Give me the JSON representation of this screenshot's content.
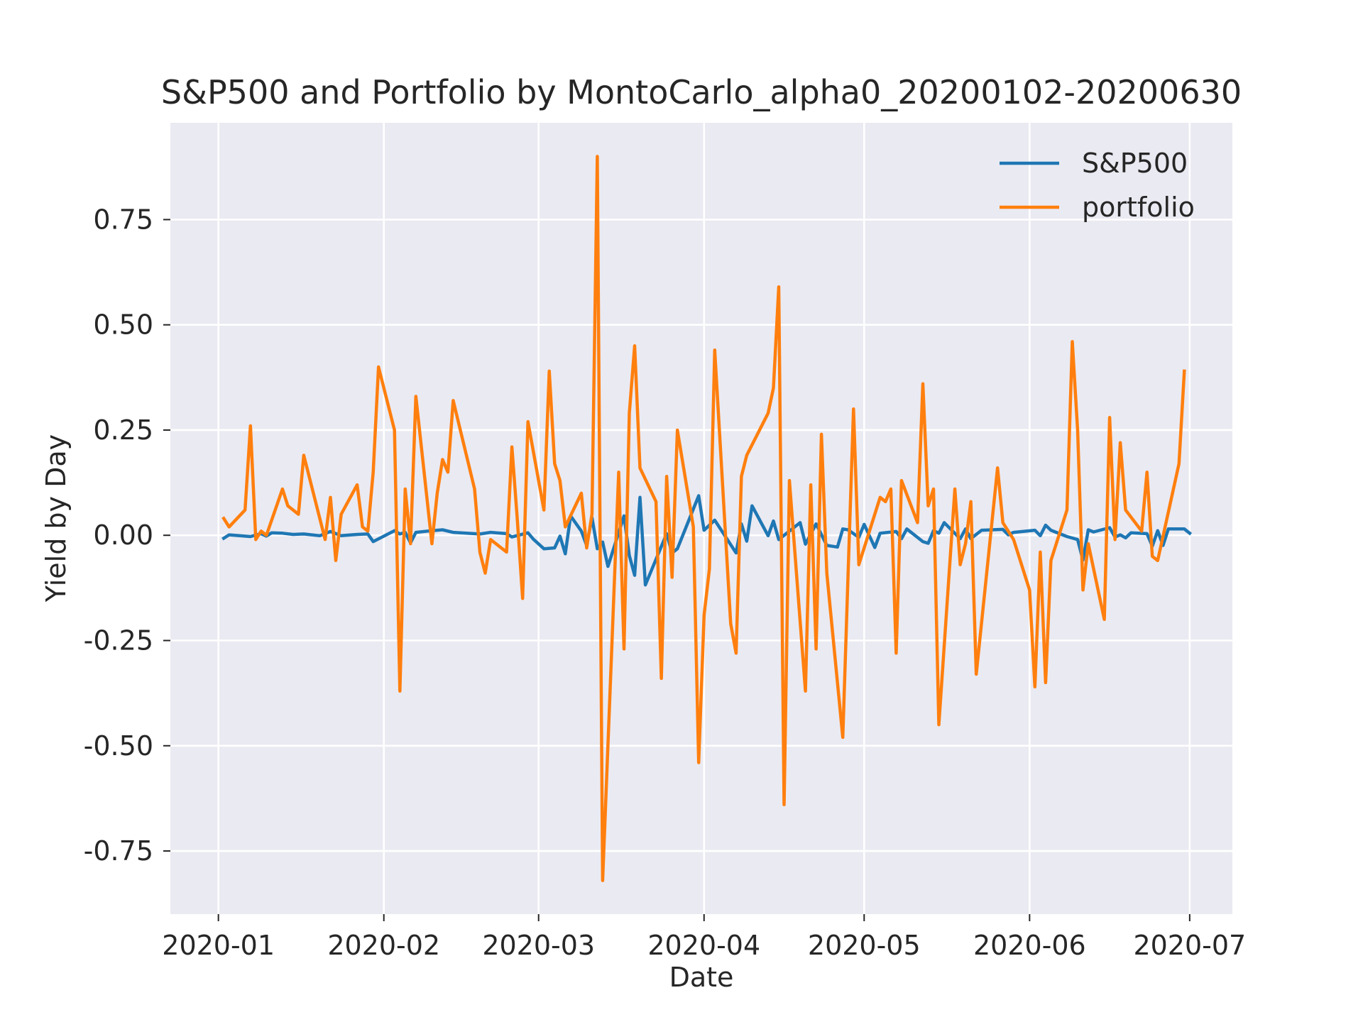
{
  "chart_data": {
    "type": "line",
    "title": "S&P500 and Portfolio by MontoCarlo_alpha0_20200102-20200630",
    "xlabel": "Date",
    "ylabel": "Yield by Day",
    "xlim": [
      "2019-12-23",
      "2020-07-09"
    ],
    "ylim": [
      -0.9,
      0.98
    ],
    "xticks": [
      {
        "date": "2020-01-01",
        "label": "2020-01"
      },
      {
        "date": "2020-02-01",
        "label": "2020-02"
      },
      {
        "date": "2020-03-01",
        "label": "2020-03"
      },
      {
        "date": "2020-04-01",
        "label": "2020-04"
      },
      {
        "date": "2020-05-01",
        "label": "2020-05"
      },
      {
        "date": "2020-06-01",
        "label": "2020-06"
      },
      {
        "date": "2020-07-01",
        "label": "2020-07"
      }
    ],
    "yticks": [
      {
        "value": -0.75,
        "label": "-0.75"
      },
      {
        "value": -0.5,
        "label": "-0.50"
      },
      {
        "value": -0.25,
        "label": "-0.25"
      },
      {
        "value": 0.0,
        "label": "0.00"
      },
      {
        "value": 0.25,
        "label": "0.25"
      },
      {
        "value": 0.5,
        "label": "0.50"
      },
      {
        "value": 0.75,
        "label": "0.75"
      }
    ],
    "grid": true,
    "legend_position": "top-right",
    "colors": {
      "background": "#eaeaf2",
      "grid": "#ffffff",
      "S&P500": "#1f77b4",
      "portfolio": "#ff7f0e"
    },
    "series": [
      {
        "name": "S&P500",
        "color": "#1f77b4",
        "points": [
          [
            "2020-01-02",
            -0.007
          ],
          [
            "2020-01-03",
            0.001
          ],
          [
            "2020-01-07",
            -0.003
          ],
          [
            "2020-01-09",
            0.004
          ],
          [
            "2020-01-10",
            -0.002
          ],
          [
            "2020-01-11",
            0.006
          ],
          [
            "2020-01-13",
            0.005
          ],
          [
            "2020-01-15",
            0.002
          ],
          [
            "2020-01-17",
            0.003
          ],
          [
            "2020-01-20",
            -0.001
          ],
          [
            "2020-01-22",
            0.009
          ],
          [
            "2020-01-24",
            -0.001
          ],
          [
            "2020-01-27",
            0.002
          ],
          [
            "2020-01-29",
            0.003
          ],
          [
            "2020-01-30",
            -0.015
          ],
          [
            "2020-02-03",
            0.011
          ],
          [
            "2020-02-04",
            0.003
          ],
          [
            "2020-02-05",
            0.007
          ],
          [
            "2020-02-06",
            -0.018
          ],
          [
            "2020-02-07",
            0.007
          ],
          [
            "2020-02-10",
            0.011
          ],
          [
            "2020-02-12",
            0.013
          ],
          [
            "2020-02-14",
            0.007
          ],
          [
            "2020-02-19",
            0.003
          ],
          [
            "2020-02-21",
            0.007
          ],
          [
            "2020-02-24",
            0.004
          ],
          [
            "2020-02-25",
            -0.004
          ],
          [
            "2020-02-28",
            0.006
          ],
          [
            "2020-02-29",
            -0.009
          ],
          [
            "2020-03-02",
            -0.032
          ],
          [
            "2020-03-04",
            -0.03
          ],
          [
            "2020-03-05",
            -0.002
          ],
          [
            "2020-03-06",
            -0.044
          ],
          [
            "2020-03-07",
            0.046
          ],
          [
            "2020-03-09",
            0.01
          ],
          [
            "2020-03-10",
            -0.024
          ],
          [
            "2020-03-11",
            0.042
          ],
          [
            "2020-03-12",
            -0.032
          ],
          [
            "2020-03-13",
            -0.016
          ],
          [
            "2020-03-14",
            -0.074
          ],
          [
            "2020-03-17",
            0.046
          ],
          [
            "2020-03-18",
            -0.048
          ],
          [
            "2020-03-19",
            -0.095
          ],
          [
            "2020-03-20",
            0.09
          ],
          [
            "2020-03-21",
            -0.118
          ],
          [
            "2020-03-25",
            0.004
          ],
          [
            "2020-03-26",
            -0.042
          ],
          [
            "2020-03-27",
            -0.032
          ],
          [
            "2020-03-31",
            0.094
          ],
          [
            "2020-04-01",
            0.012
          ],
          [
            "2020-04-03",
            0.036
          ],
          [
            "2020-04-07",
            -0.042
          ],
          [
            "2020-04-08",
            0.027
          ],
          [
            "2020-04-09",
            -0.014
          ],
          [
            "2020-04-10",
            0.07
          ],
          [
            "2020-04-13",
            -0.001
          ],
          [
            "2020-04-14",
            0.034
          ],
          [
            "2020-04-15",
            -0.01
          ],
          [
            "2020-04-19",
            0.03
          ],
          [
            "2020-04-20",
            -0.021
          ],
          [
            "2020-04-22",
            0.027
          ],
          [
            "2020-04-24",
            -0.024
          ],
          [
            "2020-04-26",
            -0.028
          ],
          [
            "2020-04-27",
            0.015
          ],
          [
            "2020-04-28",
            0.013
          ],
          [
            "2020-04-30",
            -0.005
          ],
          [
            "2020-05-01",
            0.026
          ],
          [
            "2020-05-03",
            -0.029
          ],
          [
            "2020-05-04",
            0.005
          ],
          [
            "2020-05-07",
            0.009
          ],
          [
            "2020-05-08",
            -0.008
          ],
          [
            "2020-05-09",
            0.015
          ],
          [
            "2020-05-12",
            -0.015
          ],
          [
            "2020-05-13",
            -0.019
          ],
          [
            "2020-05-14",
            0.011
          ],
          [
            "2020-05-15",
            0.005
          ],
          [
            "2020-05-16",
            0.03
          ],
          [
            "2020-05-19",
            -0.008
          ],
          [
            "2020-05-20",
            0.015
          ],
          [
            "2020-05-21",
            -0.008
          ],
          [
            "2020-05-22",
            0.002
          ],
          [
            "2020-05-23",
            0.012
          ],
          [
            "2020-05-27",
            0.014
          ],
          [
            "2020-05-28",
            0.001
          ],
          [
            "2020-05-29",
            0.007
          ],
          [
            "2020-06-02",
            0.012
          ],
          [
            "2020-06-03",
            -0.001
          ],
          [
            "2020-06-04",
            0.024
          ],
          [
            "2020-06-05",
            0.012
          ],
          [
            "2020-06-08",
            -0.003
          ],
          [
            "2020-06-10",
            -0.01
          ],
          [
            "2020-06-11",
            -0.059
          ],
          [
            "2020-06-12",
            0.013
          ],
          [
            "2020-06-13",
            0.008
          ],
          [
            "2020-06-16",
            0.018
          ],
          [
            "2020-06-17",
            -0.004
          ],
          [
            "2020-06-18",
            0.001
          ],
          [
            "2020-06-19",
            -0.006
          ],
          [
            "2020-06-20",
            0.006
          ],
          [
            "2020-06-23",
            0.004
          ],
          [
            "2020-06-24",
            -0.026
          ],
          [
            "2020-06-25",
            0.011
          ],
          [
            "2020-06-26",
            -0.024
          ],
          [
            "2020-06-27",
            0.015
          ],
          [
            "2020-06-30",
            0.015
          ],
          [
            "2020-07-01",
            0.005
          ]
        ]
      },
      {
        "name": "portfolio",
        "color": "#ff7f0e",
        "points": [
          [
            "2020-01-02",
            0.04
          ],
          [
            "2020-01-03",
            0.02
          ],
          [
            "2020-01-06",
            0.06
          ],
          [
            "2020-01-07",
            0.26
          ],
          [
            "2020-01-08",
            -0.01
          ],
          [
            "2020-01-09",
            0.01
          ],
          [
            "2020-01-10",
            0.0
          ],
          [
            "2020-01-13",
            0.11
          ],
          [
            "2020-01-14",
            0.07
          ],
          [
            "2020-01-15",
            0.06
          ],
          [
            "2020-01-16",
            0.05
          ],
          [
            "2020-01-17",
            0.19
          ],
          [
            "2020-01-21",
            -0.01
          ],
          [
            "2020-01-22",
            0.09
          ],
          [
            "2020-01-23",
            -0.06
          ],
          [
            "2020-01-24",
            0.05
          ],
          [
            "2020-01-27",
            0.12
          ],
          [
            "2020-01-28",
            0.02
          ],
          [
            "2020-01-29",
            0.01
          ],
          [
            "2020-01-30",
            0.15
          ],
          [
            "2020-01-31",
            0.4
          ],
          [
            "2020-02-03",
            0.25
          ],
          [
            "2020-02-04",
            -0.37
          ],
          [
            "2020-02-05",
            0.11
          ],
          [
            "2020-02-06",
            -0.02
          ],
          [
            "2020-02-07",
            0.33
          ],
          [
            "2020-02-10",
            -0.02
          ],
          [
            "2020-02-11",
            0.1
          ],
          [
            "2020-02-12",
            0.18
          ],
          [
            "2020-02-13",
            0.15
          ],
          [
            "2020-02-14",
            0.32
          ],
          [
            "2020-02-18",
            0.11
          ],
          [
            "2020-02-19",
            -0.04
          ],
          [
            "2020-02-20",
            -0.09
          ],
          [
            "2020-02-21",
            -0.01
          ],
          [
            "2020-02-24",
            -0.04
          ],
          [
            "2020-02-25",
            0.21
          ],
          [
            "2020-02-26",
            0.04
          ],
          [
            "2020-02-27",
            -0.15
          ],
          [
            "2020-02-28",
            0.27
          ],
          [
            "2020-03-02",
            0.06
          ],
          [
            "2020-03-03",
            0.39
          ],
          [
            "2020-03-04",
            0.17
          ],
          [
            "2020-03-05",
            0.13
          ],
          [
            "2020-03-06",
            0.02
          ],
          [
            "2020-03-09",
            0.1
          ],
          [
            "2020-03-10",
            -0.03
          ],
          [
            "2020-03-11",
            0.05
          ],
          [
            "2020-03-12",
            0.9
          ],
          [
            "2020-03-13",
            -0.82
          ],
          [
            "2020-03-16",
            0.15
          ],
          [
            "2020-03-17",
            -0.27
          ],
          [
            "2020-03-18",
            0.29
          ],
          [
            "2020-03-19",
            0.45
          ],
          [
            "2020-03-20",
            0.16
          ],
          [
            "2020-03-23",
            0.08
          ],
          [
            "2020-03-24",
            -0.34
          ],
          [
            "2020-03-25",
            0.14
          ],
          [
            "2020-03-26",
            -0.1
          ],
          [
            "2020-03-27",
            0.25
          ],
          [
            "2020-03-30",
            0.02
          ],
          [
            "2020-03-31",
            -0.54
          ],
          [
            "2020-04-01",
            -0.19
          ],
          [
            "2020-04-02",
            -0.08
          ],
          [
            "2020-04-03",
            0.44
          ],
          [
            "2020-04-06",
            -0.21
          ],
          [
            "2020-04-07",
            -0.28
          ],
          [
            "2020-04-08",
            0.14
          ],
          [
            "2020-04-09",
            0.19
          ],
          [
            "2020-04-13",
            0.29
          ],
          [
            "2020-04-14",
            0.35
          ],
          [
            "2020-04-15",
            0.59
          ],
          [
            "2020-04-16",
            -0.64
          ],
          [
            "2020-04-17",
            0.13
          ],
          [
            "2020-04-20",
            -0.37
          ],
          [
            "2020-04-21",
            0.12
          ],
          [
            "2020-04-22",
            -0.27
          ],
          [
            "2020-04-23",
            0.24
          ],
          [
            "2020-04-24",
            -0.09
          ],
          [
            "2020-04-27",
            -0.48
          ],
          [
            "2020-04-28",
            -0.09
          ],
          [
            "2020-04-29",
            0.3
          ],
          [
            "2020-04-30",
            -0.07
          ],
          [
            "2020-05-01",
            -0.03
          ],
          [
            "2020-05-04",
            0.09
          ],
          [
            "2020-05-05",
            0.08
          ],
          [
            "2020-05-06",
            0.11
          ],
          [
            "2020-05-07",
            -0.28
          ],
          [
            "2020-05-08",
            0.13
          ],
          [
            "2020-05-11",
            0.03
          ],
          [
            "2020-05-12",
            0.36
          ],
          [
            "2020-05-13",
            0.07
          ],
          [
            "2020-05-14",
            0.11
          ],
          [
            "2020-05-15",
            -0.45
          ],
          [
            "2020-05-18",
            0.11
          ],
          [
            "2020-05-19",
            -0.07
          ],
          [
            "2020-05-20",
            -0.02
          ],
          [
            "2020-05-21",
            0.08
          ],
          [
            "2020-05-22",
            -0.33
          ],
          [
            "2020-05-26",
            0.16
          ],
          [
            "2020-05-27",
            0.03
          ],
          [
            "2020-05-29",
            -0.01
          ],
          [
            "2020-06-01",
            -0.13
          ],
          [
            "2020-06-02",
            -0.36
          ],
          [
            "2020-06-03",
            -0.04
          ],
          [
            "2020-06-04",
            -0.35
          ],
          [
            "2020-06-05",
            -0.06
          ],
          [
            "2020-06-08",
            0.06
          ],
          [
            "2020-06-09",
            0.46
          ],
          [
            "2020-06-10",
            0.25
          ],
          [
            "2020-06-11",
            -0.13
          ],
          [
            "2020-06-12",
            -0.02
          ],
          [
            "2020-06-15",
            -0.2
          ],
          [
            "2020-06-16",
            0.28
          ],
          [
            "2020-06-17",
            -0.01
          ],
          [
            "2020-06-18",
            0.22
          ],
          [
            "2020-06-19",
            0.06
          ],
          [
            "2020-06-22",
            0.01
          ],
          [
            "2020-06-23",
            0.15
          ],
          [
            "2020-06-24",
            -0.05
          ],
          [
            "2020-06-25",
            -0.06
          ],
          [
            "2020-06-29",
            0.17
          ],
          [
            "2020-06-30",
            0.39
          ]
        ]
      }
    ]
  }
}
